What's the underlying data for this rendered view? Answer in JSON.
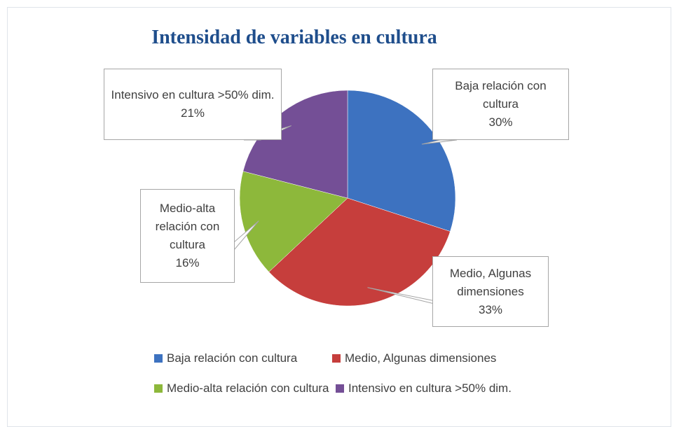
{
  "chart_data": {
    "type": "pie",
    "title": "Intensidad de variables en cultura",
    "categories": [
      "Baja relación con cultura",
      "Medio, Algunas dimensiones",
      "Medio-alta relación con cultura",
      "Intensivo en cultura >50% dim."
    ],
    "values": [
      30,
      33,
      16,
      21
    ],
    "value_labels": [
      "30%",
      "33%",
      "16%",
      "21%"
    ],
    "colors": [
      "#3d72c0",
      "#c63e3c",
      "#8db83b",
      "#744f96"
    ]
  }
}
